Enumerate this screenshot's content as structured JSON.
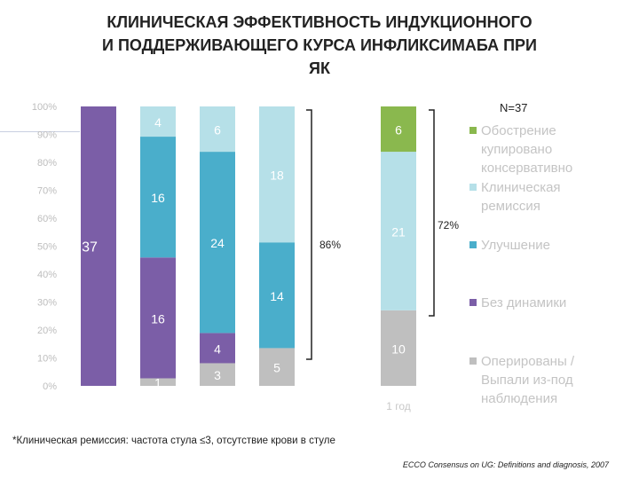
{
  "title_lines": [
    "КЛИНИЧЕСКАЯ ЭФФЕКТИВНОСТЬ ИНДУКЦИОННОГО",
    "И ПОДДЕРЖИВАЮЩЕГО КУРСА ИНФЛИКСИМАБА ПРИ",
    "ЯК"
  ],
  "footnote": "*Клиническая ремиссия: частота стула ≤3, отсутствие крови в стуле",
  "source": "ECCO Consensus on UG: Definitions and diagnosis, 2007",
  "colors": {
    "purple": "#7b5ea7",
    "teal": "#4aaecb",
    "lightblue": "#b6e0e8",
    "green": "#8ab84e",
    "gray": "#bfbfbf"
  },
  "chart_data": {
    "type": "bar",
    "stacked": true,
    "n_label": "N=37",
    "y_ticks": [
      "0%",
      "10%",
      "20%",
      "30%",
      "40%",
      "50%",
      "60%",
      "70%",
      "80%",
      "90%",
      "100%"
    ],
    "ylim": [
      0,
      100
    ],
    "grid": false,
    "legend_position": "right",
    "categories": [
      "",
      "",
      "",
      "",
      "1 год"
    ],
    "series": [
      {
        "name": "Оперированы / Выпали из-под наблюдения",
        "color": "#bfbfbf",
        "values": [
          0,
          1,
          3,
          5,
          10
        ]
      },
      {
        "name": "Без динамики",
        "color": "#7b5ea7",
        "values": [
          37,
          16,
          4,
          0,
          0
        ]
      },
      {
        "name": "Улучшение",
        "color": "#4aaecb",
        "values": [
          0,
          16,
          24,
          14,
          0
        ]
      },
      {
        "name": "Клиническая ремиссия",
        "color": "#b6e0e8",
        "values": [
          0,
          4,
          6,
          18,
          21
        ]
      },
      {
        "name": "Обострение купировано консервативно",
        "color": "#8ab84e",
        "values": [
          0,
          0,
          0,
          0,
          6
        ]
      }
    ],
    "annotations": [
      {
        "text": "86%",
        "bracket_bar": 3
      },
      {
        "text": "72%",
        "bracket_bar": 4
      }
    ]
  }
}
